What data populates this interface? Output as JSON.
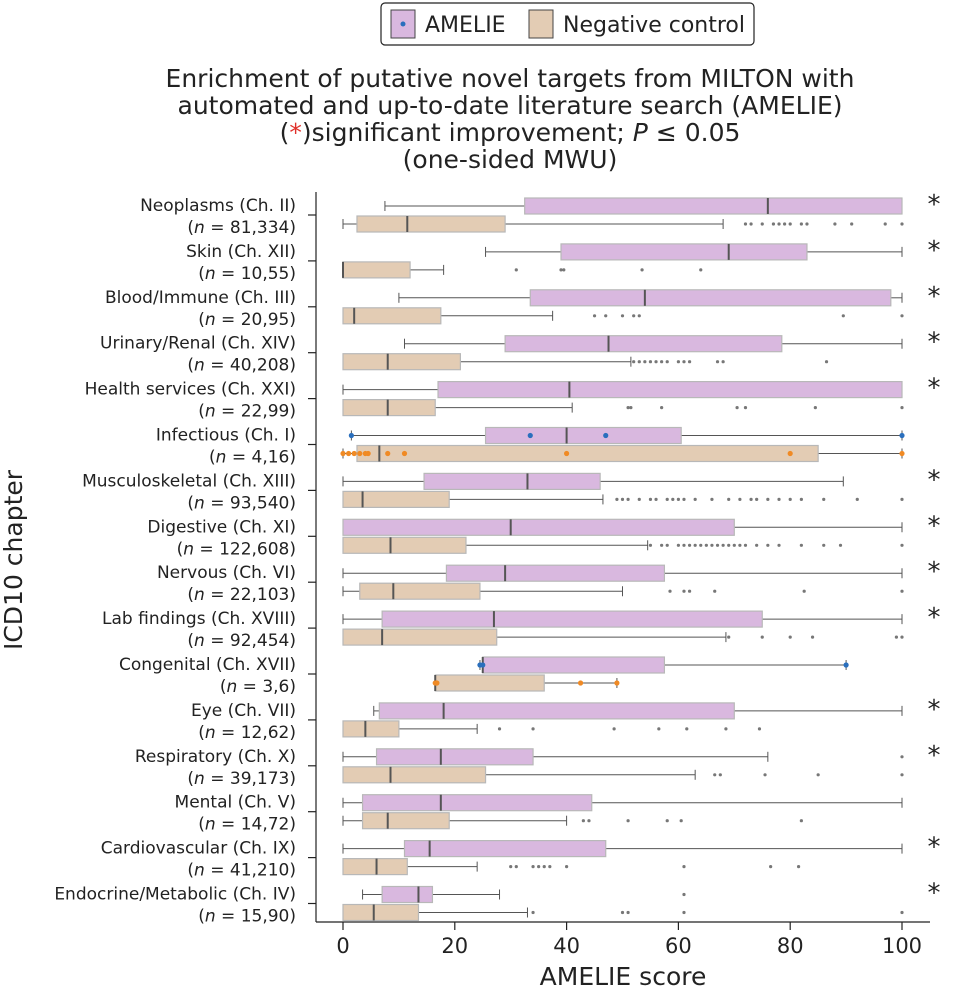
{
  "chart_data": {
    "type": "box",
    "title_lines": [
      "Enrichment of putative novel targets from MILTON with",
      "automated and up-to-date literature search (AMELIE)"
    ],
    "subtitle_star": "*",
    "subtitle_rest": ")significant improvement; ",
    "subtitle_p": "P",
    "subtitle_tail": " ≤ 0.05",
    "subtitle_line2": "(one-sided MWU)",
    "xlabel": "AMELIE score",
    "ylabel": "ICD10 chapter",
    "xlim": [
      0,
      100
    ],
    "xticks": [
      "0",
      "20",
      "40",
      "60",
      "80",
      "100"
    ],
    "legend": [
      {
        "name": "AMELIE",
        "color": "#d9b8df"
      },
      {
        "name": "Negative control",
        "color": "#e3ccb4"
      }
    ],
    "colors": {
      "amelie_fill": "#d9b8df",
      "control_fill": "#e3ccb4",
      "box_edge": "#b8b8b8",
      "median": "#555555",
      "flier": "#777777",
      "amelie_point": "#2a6fbd",
      "control_point": "#f08a24",
      "star_red": "#e0302a"
    },
    "categories": [
      {
        "label": "Neoplasms (Ch. II)",
        "n": "81,334",
        "sig": "*",
        "amelie": {
          "whislo": 7.5,
          "q1": 32.5,
          "med": 76,
          "q3": 100,
          "whishi": 100,
          "fliers": []
        },
        "control": {
          "whislo": 0,
          "q1": 2.5,
          "med": 11.5,
          "q3": 29,
          "whishi": 68,
          "fliers": [
            72,
            73,
            75,
            77,
            78,
            79,
            80,
            82,
            83,
            88,
            91,
            97,
            100
          ]
        }
      },
      {
        "label": "Skin (Ch. XII)",
        "n": "10,55",
        "sig": "*",
        "amelie": {
          "whislo": 25.5,
          "q1": 39,
          "med": 69,
          "q3": 83,
          "whishi": 100,
          "fliers": []
        },
        "control": {
          "whislo": 0,
          "q1": 0,
          "med": 0,
          "q3": 12,
          "whishi": 18,
          "fliers": [
            31,
            39,
            39.5,
            53.5,
            64
          ]
        }
      },
      {
        "label": "Blood/Immune (Ch. III)",
        "n": "20,95",
        "sig": "*",
        "amelie": {
          "whislo": 10,
          "q1": 33.5,
          "med": 54,
          "q3": 98,
          "whishi": 100,
          "fliers": []
        },
        "control": {
          "whislo": 0,
          "q1": 0,
          "med": 2,
          "q3": 17.5,
          "whishi": 37.5,
          "fliers": [
            45,
            47,
            50,
            52,
            53,
            89.5,
            100
          ]
        }
      },
      {
        "label": "Urinary/Renal (Ch. XIV)",
        "n": "40,208",
        "sig": "*",
        "amelie": {
          "whislo": 11,
          "q1": 29,
          "med": 47.5,
          "q3": 78.5,
          "whishi": 100,
          "fliers": []
        },
        "control": {
          "whislo": 0,
          "q1": 0,
          "med": 8,
          "q3": 21,
          "whishi": 51.5,
          "fliers": [
            52,
            53,
            54,
            55,
            56,
            57,
            58,
            60,
            61,
            62,
            67,
            68,
            86.5
          ]
        }
      },
      {
        "label": "Health services (Ch. XXI)",
        "n": "22,99",
        "sig": "*",
        "amelie": {
          "whislo": 0,
          "q1": 17,
          "med": 40.5,
          "q3": 100,
          "whishi": 100,
          "fliers": []
        },
        "control": {
          "whislo": 0,
          "q1": 0,
          "med": 8,
          "q3": 16.5,
          "whishi": 41,
          "fliers": [
            51,
            51.5,
            57,
            70.5,
            72,
            84.5,
            100
          ]
        }
      },
      {
        "label": "Infectious (Ch. I)",
        "n": "4,16",
        "sig": "",
        "amelie": {
          "whislo": 1.5,
          "q1": 25.5,
          "med": 40,
          "q3": 60.5,
          "whishi": 100,
          "fliers": []
        },
        "control": {
          "whislo": 0,
          "q1": 2.5,
          "med": 6.5,
          "q3": 85,
          "whishi": 100,
          "fliers": []
        },
        "amelie_points": [
          1.5,
          33.5,
          47,
          100
        ],
        "control_points": [
          0,
          1,
          2,
          3,
          4,
          4.5,
          8,
          11,
          40,
          80,
          100
        ]
      },
      {
        "label": "Musculoskeletal (Ch. XIII)",
        "n": "93,540",
        "sig": "*",
        "amelie": {
          "whislo": 0,
          "q1": 14.5,
          "med": 33,
          "q3": 46,
          "whishi": 89.5,
          "fliers": []
        },
        "control": {
          "whislo": 0,
          "q1": 0,
          "med": 3.5,
          "q3": 19,
          "whishi": 46.5,
          "fliers": [
            49,
            50,
            51,
            53,
            55,
            56,
            58,
            59,
            60,
            61,
            63,
            66,
            69,
            71,
            73,
            74,
            76,
            78,
            80,
            82,
            86,
            92,
            100
          ]
        }
      },
      {
        "label": "Digestive (Ch. XI)",
        "n": "122,608",
        "sig": "*",
        "amelie": {
          "whislo": 0,
          "q1": 0,
          "med": 30,
          "q3": 70,
          "whishi": 100,
          "fliers": []
        },
        "control": {
          "whislo": 0,
          "q1": 0,
          "med": 8.5,
          "q3": 22,
          "whishi": 54.5,
          "fliers": [
            55,
            57,
            58,
            60,
            61,
            62,
            63,
            64,
            65,
            66,
            67,
            68,
            69,
            70,
            71,
            72,
            74,
            76,
            78,
            82,
            86,
            89,
            100
          ]
        }
      },
      {
        "label": "Nervous (Ch. VI)",
        "n": "22,103",
        "sig": "*",
        "amelie": {
          "whislo": 0,
          "q1": 18.5,
          "med": 29,
          "q3": 57.5,
          "whishi": 100,
          "fliers": []
        },
        "control": {
          "whislo": 0,
          "q1": 3,
          "med": 9,
          "q3": 24.5,
          "whishi": 50,
          "fliers": [
            58.5,
            61,
            62,
            66.5,
            82.5,
            100
          ]
        }
      },
      {
        "label": "Lab findings (Ch. XVIII)",
        "n": "92,454",
        "sig": "*",
        "amelie": {
          "whislo": 0,
          "q1": 7,
          "med": 27,
          "q3": 75,
          "whishi": 100,
          "fliers": []
        },
        "control": {
          "whislo": 0,
          "q1": 0,
          "med": 7,
          "q3": 27.5,
          "whishi": 68.5,
          "fliers": [
            69,
            75,
            80,
            84,
            99,
            100
          ]
        }
      },
      {
        "label": "Congenital (Ch. XVII)",
        "n": "3,6",
        "sig": "",
        "amelie": {
          "whislo": 24.5,
          "q1": 25,
          "med": 25,
          "q3": 57.5,
          "whishi": 90,
          "fliers": []
        },
        "control": {
          "whislo": 16.5,
          "q1": 16.5,
          "med": 16.5,
          "q3": 36,
          "whishi": 49,
          "fliers": []
        },
        "amelie_points": [
          24.5,
          25,
          90
        ],
        "control_points": [
          16.5,
          16.8,
          42.5,
          49
        ]
      },
      {
        "label": "Eye (Ch. VII)",
        "n": "12,62",
        "sig": "*",
        "amelie": {
          "whislo": 5.5,
          "q1": 6.5,
          "med": 18,
          "q3": 70,
          "whishi": 100,
          "fliers": []
        },
        "control": {
          "whislo": 0,
          "q1": 0,
          "med": 4,
          "q3": 10,
          "whishi": 24,
          "fliers": [
            28,
            34,
            48.5,
            56.5,
            61.5,
            68.5,
            74.5
          ]
        }
      },
      {
        "label": "Respiratory (Ch. X)",
        "n": "39,173",
        "sig": "*",
        "amelie": {
          "whislo": 0,
          "q1": 6,
          "med": 17.5,
          "q3": 34,
          "whishi": 76,
          "fliers": [
            100
          ]
        },
        "control": {
          "whislo": 0,
          "q1": 0,
          "med": 8.5,
          "q3": 25.5,
          "whishi": 63,
          "fliers": [
            66.5,
            67.5,
            75.5,
            85,
            100
          ]
        }
      },
      {
        "label": "Mental (Ch. V)",
        "n": "14,72",
        "sig": "",
        "amelie": {
          "whislo": 0,
          "q1": 3.5,
          "med": 17.5,
          "q3": 44.5,
          "whishi": 100,
          "fliers": []
        },
        "control": {
          "whislo": 0,
          "q1": 3.5,
          "med": 8,
          "q3": 19,
          "whishi": 40,
          "fliers": [
            43,
            44,
            51,
            58,
            60.5,
            82
          ]
        }
      },
      {
        "label": "Cardiovascular (Ch. IX)",
        "n": "41,210",
        "sig": "*",
        "amelie": {
          "whislo": 0,
          "q1": 11,
          "med": 15.5,
          "q3": 47,
          "whishi": 100,
          "fliers": []
        },
        "control": {
          "whislo": 0,
          "q1": 0,
          "med": 6,
          "q3": 11.5,
          "whishi": 24,
          "fliers": [
            30,
            31,
            34,
            35,
            36,
            37,
            40,
            61,
            76.5,
            81.5
          ]
        }
      },
      {
        "label": "Endocrine/Metabolic (Ch. IV)",
        "n": "15,90",
        "sig": "*",
        "amelie": {
          "whislo": 3.5,
          "q1": 7,
          "med": 13.5,
          "q3": 16,
          "whishi": 28,
          "fliers": [
            61
          ]
        },
        "control": {
          "whislo": 0,
          "q1": 0,
          "med": 5.5,
          "q3": 13.5,
          "whishi": 33,
          "fliers": [
            34,
            50,
            51,
            61,
            100
          ]
        }
      }
    ]
  }
}
